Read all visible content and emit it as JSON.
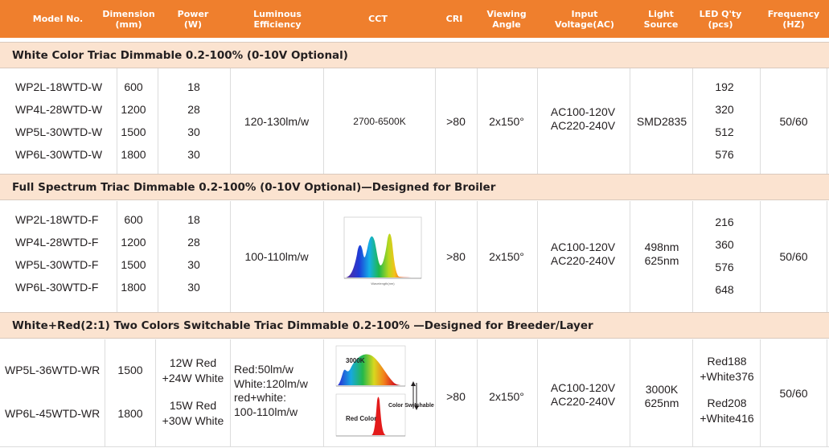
{
  "header": {
    "columns": [
      "Model No.",
      "Dimension\n(mm)",
      "Power\n(W)",
      "Luminous\nEfficiency",
      "CCT",
      "CRI",
      "Viewing\nAngle",
      "Input\nVoltage(AC)",
      "Light\nSource",
      "LED Q'ty\n(pcs)",
      "Frequency\n(HZ)"
    ],
    "bg_color": "#ef7f2d"
  },
  "sections": [
    {
      "title": "White Color Triac Dimmable 0.2-100% (0-10V Optional)",
      "models": [
        "WP2L-18WTD-W",
        "WP4L-28WTD-W",
        "WP5L-30WTD-W",
        "WP6L-30WTD-W"
      ],
      "dimensions": [
        "600",
        "1200",
        "1500",
        "1800"
      ],
      "powers": [
        "18",
        "28",
        "30",
        "30"
      ],
      "efficiency": "120-130lm/w",
      "cct": "2700-6500K",
      "cri": ">80",
      "angle": "2x150°",
      "voltage": "AC100-120V\nAC220-240V",
      "source": "SMD2835",
      "qty": [
        "192",
        "320",
        "512",
        "576"
      ],
      "frequency": "50/60"
    },
    {
      "title": "Full Spectrum Triac Dimmable 0.2-100% (0-10V Optional)—Designed for Broiler",
      "models": [
        "WP2L-18WTD-F",
        "WP4L-28WTD-F",
        "WP5L-30WTD-F",
        "WP6L-30WTD-F"
      ],
      "dimensions": [
        "600",
        "1200",
        "1500",
        "1800"
      ],
      "powers": [
        "18",
        "28",
        "30",
        "30"
      ],
      "efficiency": "100-110lm/w",
      "cct_image": "full-spectrum-chart",
      "cri": ">80",
      "angle": "2x150°",
      "voltage": "AC100-120V\nAC220-240V",
      "source": "498nm\n625nm",
      "qty": [
        "216",
        "360",
        "576",
        "648"
      ],
      "frequency": "50/60"
    },
    {
      "title": "White+Red(2:1) Two Colors Switchable Triac Dimmable 0.2-100% —Designed for Breeder/Layer",
      "models": [
        "WP5L-36WTD-WR",
        "WP6L-45WTD-WR"
      ],
      "dimensions": [
        "1500",
        "1800"
      ],
      "powers": [
        "12W Red\n+24W White",
        "15W Red\n+30W White"
      ],
      "efficiency": "Red:50lm/w\nWhite:120lm/w\nred+white:\n100-110lm/w",
      "cct_labels": {
        "top": "3000K",
        "bottom": "Red Color",
        "side": "Color Switchable"
      },
      "cri": ">80",
      "angle": "2x150°",
      "voltage": "AC100-120V\nAC220-240V",
      "source": "3000K\n625nm",
      "qty": [
        "Red188\n+White376",
        "Red208\n+White416"
      ],
      "frequency": "50/60"
    }
  ]
}
